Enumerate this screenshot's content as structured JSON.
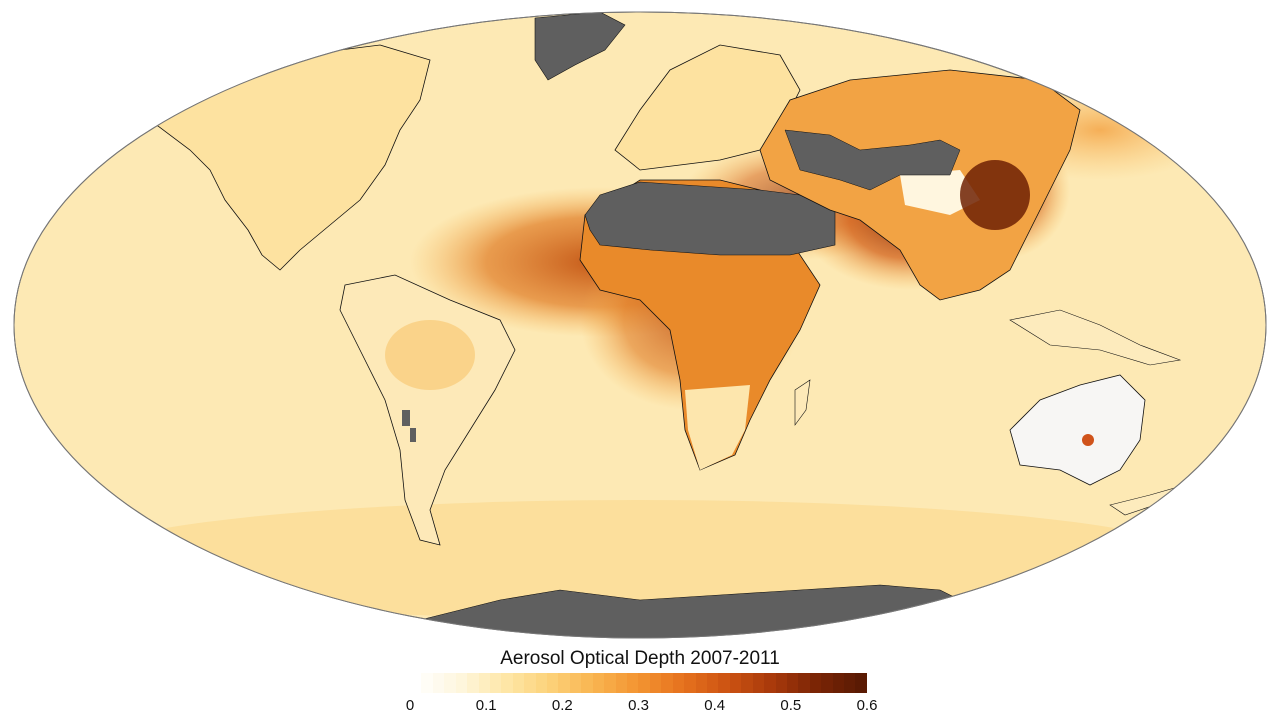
{
  "map": {
    "projection": "Mollweide",
    "variable": "aerosol optical depth",
    "no_data_color": "#5f5f5f",
    "coastline_color": "#000000",
    "ocean_color_low": "#fdf0c8"
  },
  "legend": {
    "title": "Aerosol Optical Depth 2007-2011",
    "ticks": [
      "0",
      "0.1",
      "0.2",
      "0.3",
      "0.4",
      "0.5",
      "0.6"
    ],
    "scale_min": 0,
    "scale_max": 0.6,
    "colors": [
      "#ffffff",
      "#fef6dd",
      "#fee7a8",
      "#fcd27a",
      "#f9b450",
      "#f39431",
      "#e6721e",
      "#cc5312",
      "#a8390b",
      "#7a2405",
      "#5a1a03"
    ]
  }
}
